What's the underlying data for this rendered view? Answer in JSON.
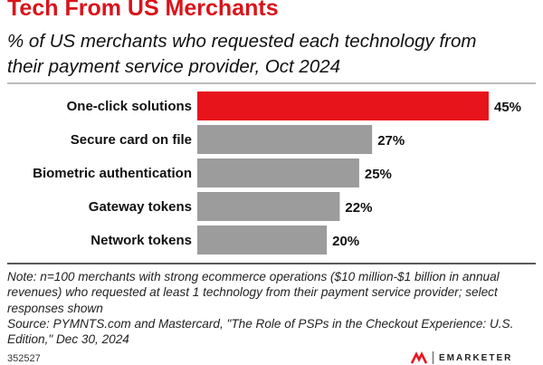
{
  "header": {
    "title": "Tech From US Merchants",
    "subtitle": "% of US merchants who requested each technology from their payment service provider, Oct 2024"
  },
  "chart_data": {
    "type": "bar",
    "orientation": "horizontal",
    "title": "Tech From US Merchants",
    "subtitle": "% of US merchants who requested each technology from their payment service provider, Oct 2024",
    "categories": [
      "One-click solutions",
      "Secure card on file",
      "Biometric authentication",
      "Gateway tokens",
      "Network tokens"
    ],
    "values": [
      45,
      27,
      25,
      22,
      20
    ],
    "value_labels": [
      "45%",
      "27%",
      "25%",
      "22%",
      "20%"
    ],
    "unit": "%",
    "xlim": [
      0,
      45
    ],
    "grid": false,
    "legend": "none",
    "colors": {
      "highlight": "#e8141c",
      "default": "#9c9c9c"
    }
  },
  "footer": {
    "note": "Note: n=100 merchants with strong ecommerce operations ($10 million-$1 billion in annual revenues) who requested at least 1 technology from their payment service provider; select responses shown",
    "source": "Source: PYMNTS.com and Mastercard, \"The Role of PSPs in the Checkout Experience: U.S. Edition,\" Dec 30, 2024",
    "chart_id": "352527",
    "brand": "EMARKETER"
  }
}
